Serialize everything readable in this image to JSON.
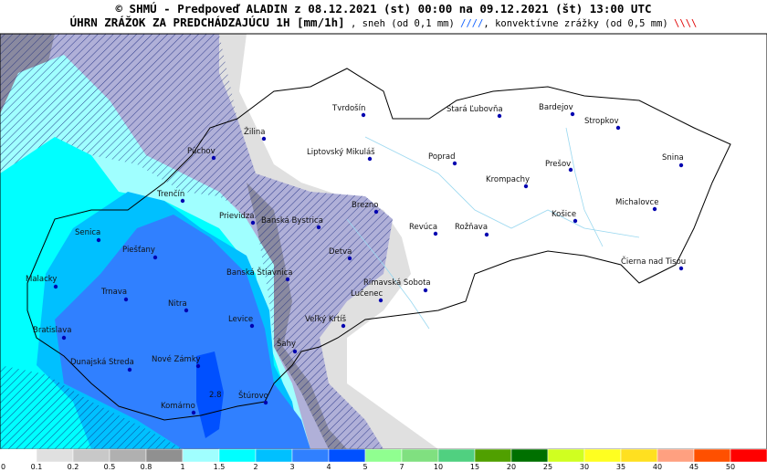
{
  "header": {
    "line1": "© SHMÚ - Predpoveď ALADIN z 08.12.2021 (st) 00:00 na 09.12.2021 (št) 13:00 UTC",
    "line2": [
      "ÚHRN ZRÁŽOK ZA PREDCHÁDZAJÚCU 1H [mm/1h]",
      " , sneh (od 0,1 mm) ",
      "////",
      ", konvektívne zrážky (od 0,5 mm) ",
      "\\\\\\\\"
    ]
  },
  "map": {
    "cities": [
      "Tvrdošín",
      "Stará Ľubovňa",
      "Bardejov",
      "Stropkov",
      "Žilina",
      "Púchov",
      "Liptovský Mikuláš",
      "Poprad",
      "Prešov",
      "Snina",
      "Krompachy",
      "Trenčín",
      "Brezno",
      "Michalovce",
      "Prievidza",
      "Banská Bystrica",
      "Košice",
      "Revúca",
      "Rožňava",
      "Senica",
      "Piešťany",
      "Detva",
      "Čierna nad Tisou",
      "Banská Štiavnica",
      "Malacky",
      "Rimavská Sobota",
      "Trnava",
      "Lučenec",
      "Nitra",
      "Levice",
      "Veľký Krtíš",
      "Bratislava",
      "Šahy",
      "Dunajská Streda",
      "Nové Zámky",
      "Štúrovo",
      "Komárno"
    ],
    "marker_label": "2.8"
  },
  "legend": {
    "labels": [
      "0",
      "0.1",
      "0.2",
      "0.5",
      "0.8",
      "1",
      "1.5",
      "2",
      "3",
      "4",
      "5",
      "7",
      "10",
      "15",
      "20",
      "25",
      "30",
      "35",
      "40",
      "45",
      "50"
    ],
    "colors": [
      "#ffffff",
      "#e0e0e0",
      "#c8c8c8",
      "#b0b0b0",
      "#909090",
      "#a0ffff",
      "#00ffff",
      "#00c0ff",
      "#3080ff",
      "#0050ff",
      "#90ff90",
      "#80e080",
      "#50d080",
      "#50a000",
      "#007000",
      "#d0ff20",
      "#ffff20",
      "#ffe020",
      "#ffa080",
      "#ff5000",
      "#ff0000"
    ]
  }
}
